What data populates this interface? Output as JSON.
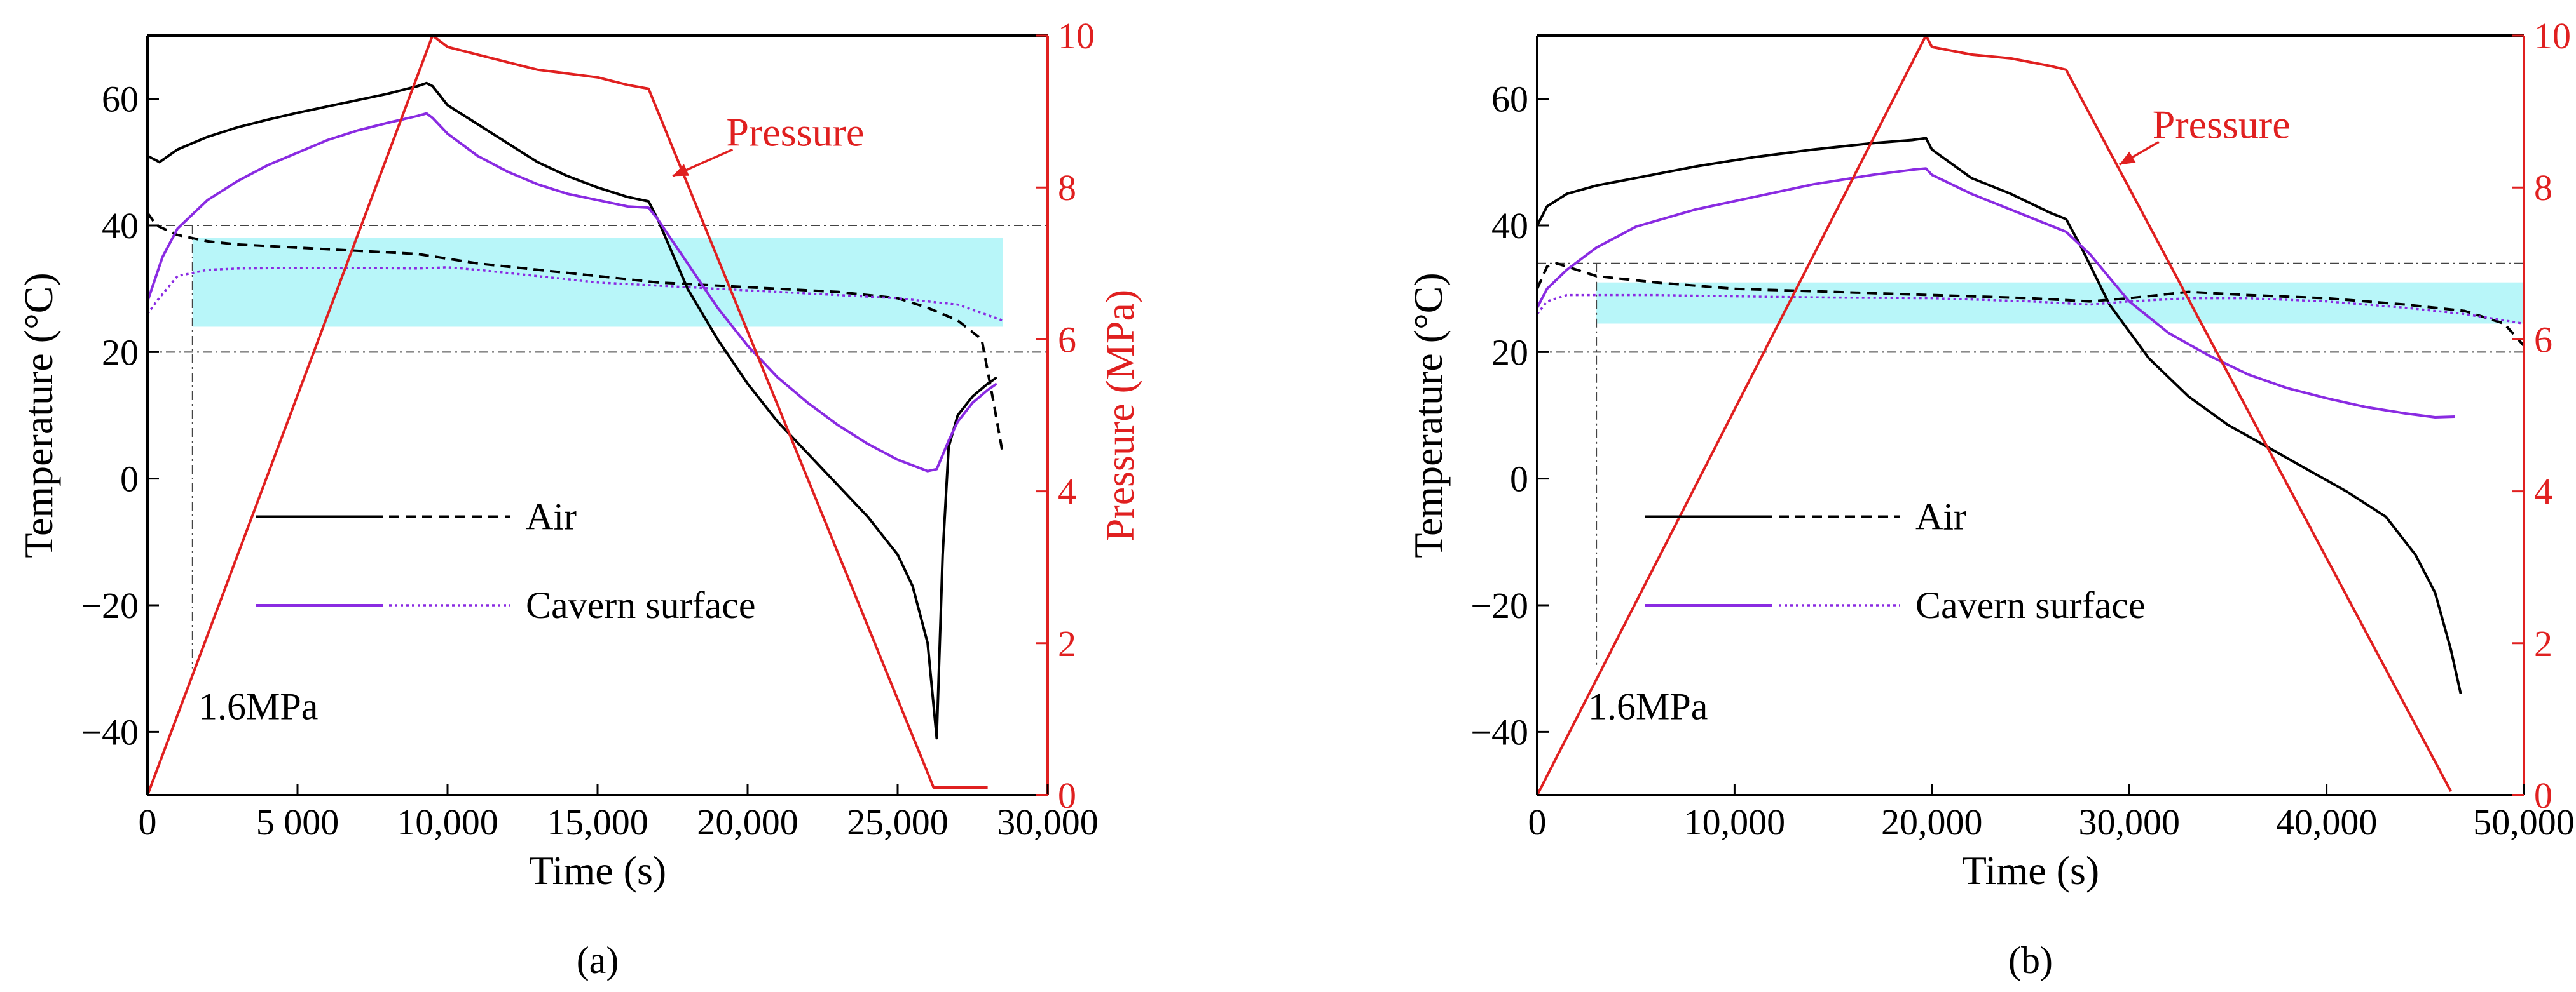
{
  "figure": {
    "panel_labels": [
      "(a)",
      "(b)"
    ]
  },
  "colors": {
    "axis_black": "#000000",
    "pressure_red": "#e02020",
    "air_black": "#000000",
    "cavern_purple": "#8a2be2",
    "band_cyan": "#b8f6f9",
    "guide_gray": "#444444"
  },
  "chart_data": [
    {
      "panel": "(a)",
      "type": "line",
      "xlabel": "Time (s)",
      "ylabel_left": "Temperature (°C)",
      "ylabel_right": "Pressure (MPa)",
      "xlim": [
        0,
        30000
      ],
      "ylim_left": [
        -50,
        70
      ],
      "ylim_right": [
        0,
        10
      ],
      "xticks": [
        0,
        5000,
        10000,
        15000,
        20000,
        25000,
        30000
      ],
      "xtick_labels": [
        "0",
        "5 000",
        "10,000",
        "15,000",
        "20,000",
        "25,000",
        "30,000"
      ],
      "yticks_left": [
        -40,
        -20,
        0,
        20,
        40,
        60
      ],
      "ytick_labels_left": [
        "−40",
        "−20",
        "0",
        "20",
        "40",
        "60"
      ],
      "yticks_right": [
        0,
        2,
        4,
        6,
        8,
        10
      ],
      "ytick_labels_right": [
        "0",
        "2",
        "4",
        "6",
        "8",
        "10"
      ],
      "legend": {
        "position": "lower-left",
        "entries": [
          "Air",
          "Cavern surface"
        ]
      },
      "annotations": {
        "pressure_label": "Pressure",
        "threshold_label": "1.6MPa"
      },
      "band": {
        "x": [
          1500,
          28500
        ],
        "y": [
          24,
          38
        ]
      },
      "hlines": [
        40,
        20
      ],
      "vline": {
        "x": 1500,
        "y": [
          -30,
          40
        ]
      },
      "pressure_point": [
        17500,
        8.15
      ],
      "label_point": [
        19500,
        8.5
      ],
      "series": [
        {
          "name": "Air",
          "axis": "left",
          "style": "solid",
          "x": [
            0,
            400,
            1000,
            2000,
            3000,
            4000,
            5000,
            6000,
            7000,
            8000,
            9000,
            9300,
            9500,
            10000,
            11000,
            12000,
            13000,
            14000,
            15000,
            16000,
            16700,
            17000,
            18000,
            19000,
            20000,
            21000,
            22000,
            23000,
            24000,
            25000,
            25500,
            26000,
            26300,
            26500,
            26700,
            27000,
            27500,
            28000,
            28300
          ],
          "y": [
            51,
            50,
            52,
            54,
            55.5,
            56.7,
            57.8,
            58.8,
            59.8,
            60.8,
            62,
            62.5,
            62,
            59,
            56,
            53,
            50,
            47.8,
            46,
            44.5,
            43.8,
            41,
            30,
            22,
            15,
            9,
            4,
            -1,
            -6,
            -12,
            -17,
            -26,
            -41,
            -12,
            5,
            10,
            13,
            15,
            16
          ]
        },
        {
          "name": "Air",
          "axis": "left",
          "style": "dashed",
          "x": [
            0,
            300,
            1000,
            2000,
            3000,
            5000,
            7000,
            9000,
            11000,
            13000,
            15000,
            17000,
            19000,
            21000,
            23000,
            25000,
            26000,
            27000,
            27800,
            28200,
            28500
          ],
          "y": [
            42,
            40,
            38.5,
            37.5,
            37,
            36.5,
            36,
            35.5,
            34,
            33,
            32,
            31,
            30.5,
            30,
            29.5,
            28.5,
            27,
            25,
            22,
            12,
            4
          ]
        },
        {
          "name": "Cavern surface",
          "axis": "left",
          "style": "solid",
          "x": [
            0,
            500,
            1000,
            2000,
            3000,
            4000,
            5000,
            6000,
            7000,
            8000,
            9000,
            9300,
            9500,
            10000,
            11000,
            12000,
            13000,
            14000,
            15000,
            16000,
            16700,
            17000,
            18000,
            19000,
            20000,
            21000,
            22000,
            23000,
            24000,
            25000,
            26000,
            26300,
            26700,
            27000,
            27500,
            28000,
            28300
          ],
          "y": [
            28,
            35,
            39.5,
            44,
            47,
            49.5,
            51.5,
            53.5,
            55,
            56.2,
            57.3,
            57.7,
            57,
            54.5,
            51,
            48.5,
            46.5,
            45,
            44,
            43,
            42.8,
            41,
            34,
            27,
            21,
            16,
            12,
            8.5,
            5.5,
            3,
            1.2,
            1.5,
            6,
            9,
            12,
            14,
            15
          ]
        },
        {
          "name": "Cavern surface",
          "axis": "left",
          "style": "dotted",
          "x": [
            0,
            300,
            1000,
            2000,
            3000,
            5000,
            7000,
            9000,
            10000,
            11000,
            13000,
            15000,
            17000,
            19000,
            21000,
            23000,
            25000,
            27000,
            28500
          ],
          "y": [
            26,
            28,
            32,
            33,
            33.2,
            33.3,
            33.3,
            33.2,
            33.4,
            33,
            32,
            31,
            30.5,
            30,
            29.5,
            29,
            28.5,
            27.5,
            25
          ]
        },
        {
          "name": "Pressure",
          "axis": "right",
          "style": "solid",
          "x": [
            0,
            9500,
            10000,
            12000,
            13000,
            14000,
            15000,
            16000,
            16700,
            26200,
            26500,
            28000
          ],
          "y": [
            0,
            10,
            9.85,
            9.65,
            9.55,
            9.5,
            9.45,
            9.35,
            9.3,
            0.1,
            0.1,
            0.1
          ]
        }
      ]
    },
    {
      "panel": "(b)",
      "type": "line",
      "xlabel": "Time (s)",
      "ylabel_left": "Temperature (°C)",
      "ylabel_right": "Pressure (MPa)",
      "xlim": [
        0,
        50000
      ],
      "ylim_left": [
        -50,
        70
      ],
      "ylim_right": [
        0,
        10
      ],
      "xticks": [
        0,
        10000,
        20000,
        30000,
        40000,
        50000
      ],
      "xtick_labels": [
        "0",
        "10,000",
        "20,000",
        "30,000",
        "40,000",
        "50,000"
      ],
      "yticks_left": [
        -40,
        -20,
        0,
        20,
        40,
        60
      ],
      "ytick_labels_left": [
        "−40",
        "−20",
        "0",
        "20",
        "40",
        "60"
      ],
      "yticks_right": [
        0,
        2,
        4,
        6,
        8,
        10
      ],
      "ytick_labels_right": [
        "0",
        "2",
        "4",
        "6",
        "8",
        "10"
      ],
      "legend": {
        "position": "lower-left",
        "entries": [
          "Air",
          "Cavern surface"
        ]
      },
      "annotations": {
        "pressure_label": "Pressure",
        "threshold_label": "1.6MPa"
      },
      "band": {
        "x": [
          3000,
          50000
        ],
        "y": [
          24.5,
          31
        ]
      },
      "hlines": [
        34,
        20
      ],
      "vline": {
        "x": 3000,
        "y": [
          -30,
          34
        ]
      },
      "pressure_point": [
        29500,
        8.3
      ],
      "label_point": [
        31500,
        8.6
      ],
      "series": [
        {
          "name": "Air",
          "axis": "left",
          "style": "solid",
          "x": [
            0,
            500,
            1500,
            3000,
            5000,
            8000,
            11000,
            14000,
            17000,
            19000,
            19700,
            20000,
            22000,
            24000,
            26000,
            26800,
            27500,
            29000,
            31000,
            33000,
            35000,
            37000,
            39000,
            41000,
            43000,
            44500,
            45500,
            46300,
            46800
          ],
          "y": [
            40,
            43,
            45,
            46.3,
            47.5,
            49.3,
            50.8,
            52,
            53,
            53.5,
            53.8,
            52,
            47.5,
            45,
            42,
            41,
            37,
            27.5,
            19,
            13,
            8.5,
            5,
            1.5,
            -2,
            -6,
            -12,
            -18,
            -27,
            -34
          ]
        },
        {
          "name": "Air",
          "axis": "left",
          "style": "dashed",
          "x": [
            0,
            500,
            1000,
            3000,
            6000,
            10000,
            15000,
            20000,
            25000,
            28000,
            30000,
            33000,
            36000,
            40000,
            44000,
            47000,
            49000,
            50000
          ],
          "y": [
            30,
            33.5,
            34,
            32,
            31,
            30,
            29.5,
            29,
            28.5,
            28,
            28.5,
            29.5,
            29,
            28.5,
            27.5,
            26.5,
            24.5,
            21
          ]
        },
        {
          "name": "Cavern surface",
          "axis": "left",
          "style": "solid",
          "x": [
            0,
            500,
            1500,
            3000,
            5000,
            8000,
            11000,
            14000,
            17000,
            19000,
            19700,
            20000,
            22000,
            24000,
            26000,
            26800,
            28000,
            30000,
            32000,
            34000,
            36000,
            38000,
            40000,
            42000,
            44000,
            45500,
            46500
          ],
          "y": [
            27,
            30,
            33,
            36.5,
            39.8,
            42.5,
            44.5,
            46.5,
            48,
            48.8,
            49,
            48,
            45,
            42.5,
            40,
            39,
            35.5,
            28,
            23,
            19.5,
            16.5,
            14.3,
            12.7,
            11.3,
            10.3,
            9.7,
            9.8
          ]
        },
        {
          "name": "Cavern surface",
          "axis": "left",
          "style": "dotted",
          "x": [
            0,
            500,
            1500,
            3000,
            6000,
            10000,
            15000,
            20000,
            25000,
            28000,
            30000,
            33000,
            36000,
            40000,
            44000,
            47000,
            49000,
            50000
          ],
          "y": [
            26,
            28,
            29,
            29,
            29,
            28.8,
            28.6,
            28.5,
            28,
            27.5,
            28,
            28.5,
            28.5,
            28,
            27,
            26,
            25,
            24.5
          ]
        },
        {
          "name": "Pressure",
          "axis": "right",
          "style": "solid",
          "x": [
            0,
            19700,
            20000,
            22000,
            24000,
            25000,
            26000,
            26800,
            46300
          ],
          "y": [
            0,
            10,
            9.85,
            9.75,
            9.7,
            9.65,
            9.6,
            9.55,
            0.05
          ]
        }
      ]
    }
  ]
}
